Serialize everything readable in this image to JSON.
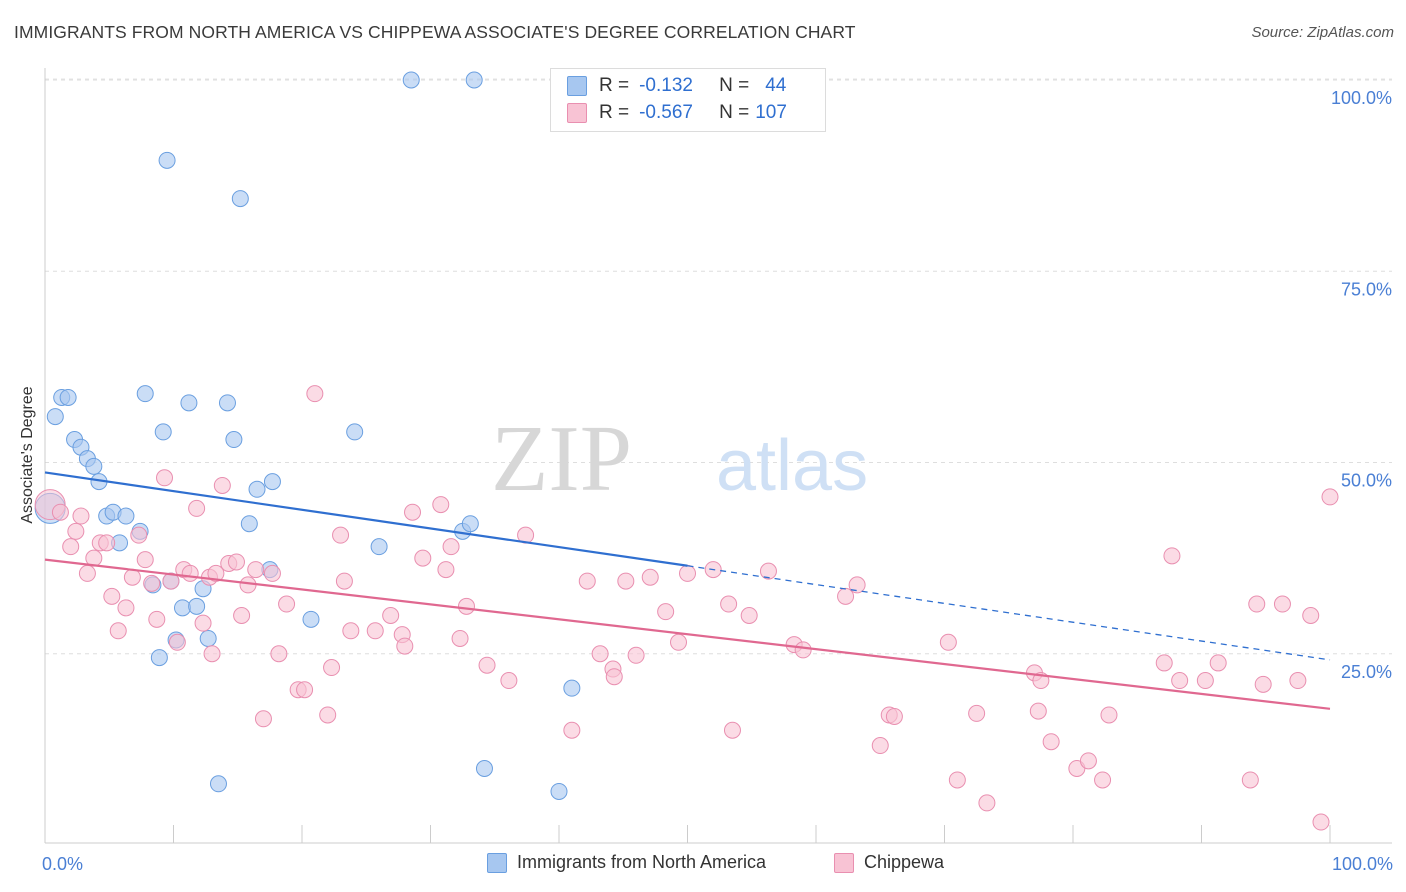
{
  "title": "IMMIGRANTS FROM NORTH AMERICA VS CHIPPEWA ASSOCIATE'S DEGREE CORRELATION CHART",
  "source": "Source: ZipAtlas.com",
  "watermark": {
    "zip": "ZIP",
    "atlas": "atlas"
  },
  "stats": [
    {
      "r_label": "R =",
      "r_value": "-0.132",
      "n_label": "N =",
      "n_value": "44",
      "color": "#a7c7f0",
      "border": "#6a9fe0"
    },
    {
      "r_label": "R =",
      "r_value": "-0.567",
      "n_label": "N =",
      "n_value": "107",
      "color": "#f8c3d4",
      "border": "#e98fb0"
    }
  ],
  "legend": [
    {
      "label": "Immigrants from North America",
      "color": "#a7c7f0",
      "border": "#6a9fe0"
    },
    {
      "label": "Chippewa",
      "color": "#f8c3d4",
      "border": "#e98fb0"
    }
  ],
  "chart_data": {
    "type": "scatter",
    "xlabel": "",
    "ylabel": "Associate's Degree",
    "xlim": [
      0,
      100
    ],
    "ylim": [
      0,
      100
    ],
    "x_tick_labels": [
      {
        "value": 0,
        "label": "0.0%"
      },
      {
        "value": 100,
        "label": "100.0%"
      }
    ],
    "y_tick_labels": [
      {
        "value": 25,
        "label": "25.0%"
      },
      {
        "value": 50,
        "label": "50.0%"
      },
      {
        "value": 75,
        "label": "75.0%"
      },
      {
        "value": 100,
        "label": "100.0%"
      }
    ],
    "grid": true,
    "series": [
      {
        "name": "Immigrants from North America",
        "color": "#a7c7f0",
        "stroke": "#6a9fe0",
        "line_color": "#2f6fd0",
        "trend": {
          "x0": 0,
          "y0": 48.7,
          "x1": 50,
          "y1": 36.5,
          "dash_to_x": 100,
          "dash_to_y": 24.2
        },
        "points": [
          [
            0.4,
            44.0
          ],
          [
            0.8,
            56.0
          ],
          [
            1.3,
            58.5
          ],
          [
            1.8,
            58.5
          ],
          [
            2.3,
            53.0
          ],
          [
            2.8,
            52.0
          ],
          [
            3.3,
            50.5
          ],
          [
            3.8,
            49.5
          ],
          [
            4.2,
            47.5
          ],
          [
            4.8,
            43.0
          ],
          [
            5.3,
            43.5
          ],
          [
            5.8,
            39.5
          ],
          [
            6.3,
            43.0
          ],
          [
            7.4,
            41.0
          ],
          [
            7.8,
            59.0
          ],
          [
            8.4,
            34.0
          ],
          [
            8.9,
            24.5
          ],
          [
            9.2,
            54.0
          ],
          [
            9.8,
            34.5
          ],
          [
            10.2,
            26.8
          ],
          [
            10.7,
            31.0
          ],
          [
            11.2,
            57.8
          ],
          [
            11.8,
            31.2
          ],
          [
            12.3,
            33.5
          ],
          [
            12.7,
            27.0
          ],
          [
            9.5,
            89.5
          ],
          [
            14.2,
            57.8
          ],
          [
            14.7,
            53.0
          ],
          [
            15.2,
            84.5
          ],
          [
            15.9,
            42.0
          ],
          [
            16.5,
            46.5
          ],
          [
            17.5,
            36.0
          ],
          [
            17.7,
            47.5
          ],
          [
            20.7,
            29.5
          ],
          [
            24.1,
            54.0
          ],
          [
            26.0,
            39.0
          ],
          [
            28.5,
            100.0
          ],
          [
            33.4,
            100.0
          ],
          [
            32.5,
            41.0
          ],
          [
            33.1,
            42.0
          ],
          [
            34.2,
            10.0
          ],
          [
            41.0,
            20.5
          ],
          [
            40.0,
            7.0
          ],
          [
            13.5,
            8.0
          ]
        ]
      },
      {
        "name": "Chippewa",
        "color": "#f8c3d4",
        "stroke": "#e98fb0",
        "line_color": "#e06890",
        "trend": {
          "x0": 0,
          "y0": 37.3,
          "x1": 100,
          "y1": 17.8
        },
        "points": [
          [
            0.4,
            44.5
          ],
          [
            1.2,
            43.5
          ],
          [
            2.0,
            39.0
          ],
          [
            2.4,
            41.0
          ],
          [
            2.8,
            43.0
          ],
          [
            3.3,
            35.5
          ],
          [
            3.8,
            37.5
          ],
          [
            4.3,
            39.5
          ],
          [
            4.8,
            39.5
          ],
          [
            5.2,
            32.5
          ],
          [
            5.7,
            28.0
          ],
          [
            6.3,
            31.0
          ],
          [
            6.8,
            35.0
          ],
          [
            7.3,
            40.5
          ],
          [
            7.8,
            37.3
          ],
          [
            8.3,
            34.2
          ],
          [
            8.7,
            29.5
          ],
          [
            9.3,
            48.0
          ],
          [
            9.8,
            34.5
          ],
          [
            10.3,
            26.5
          ],
          [
            10.8,
            36.0
          ],
          [
            11.3,
            35.5
          ],
          [
            11.8,
            44.0
          ],
          [
            12.3,
            29.0
          ],
          [
            12.8,
            35.0
          ],
          [
            13.0,
            25.0
          ],
          [
            13.3,
            35.5
          ],
          [
            13.8,
            47.0
          ],
          [
            14.3,
            36.8
          ],
          [
            14.9,
            37.0
          ],
          [
            15.3,
            30.0
          ],
          [
            15.8,
            34.0
          ],
          [
            16.4,
            36.0
          ],
          [
            17.0,
            16.5
          ],
          [
            17.7,
            35.5
          ],
          [
            18.2,
            25.0
          ],
          [
            18.8,
            31.5
          ],
          [
            19.7,
            20.3
          ],
          [
            20.2,
            20.3
          ],
          [
            21.0,
            59.0
          ],
          [
            22.0,
            17.0
          ],
          [
            22.3,
            23.2
          ],
          [
            23.0,
            40.5
          ],
          [
            23.3,
            34.5
          ],
          [
            23.8,
            28.0
          ],
          [
            25.7,
            28.0
          ],
          [
            26.9,
            30.0
          ],
          [
            27.8,
            27.5
          ],
          [
            28.0,
            26.0
          ],
          [
            28.6,
            43.5
          ],
          [
            29.4,
            37.5
          ],
          [
            30.8,
            44.5
          ],
          [
            31.2,
            36.0
          ],
          [
            31.6,
            39.0
          ],
          [
            32.3,
            27.0
          ],
          [
            32.8,
            31.2
          ],
          [
            34.4,
            23.5
          ],
          [
            36.1,
            21.5
          ],
          [
            37.4,
            40.5
          ],
          [
            41.0,
            15.0
          ],
          [
            42.2,
            34.5
          ],
          [
            43.2,
            25.0
          ],
          [
            44.2,
            23.0
          ],
          [
            44.3,
            22.0
          ],
          [
            45.2,
            34.5
          ],
          [
            46.0,
            24.8
          ],
          [
            47.1,
            35.0
          ],
          [
            48.3,
            30.5
          ],
          [
            49.3,
            26.5
          ],
          [
            50.0,
            35.5
          ],
          [
            52.0,
            36.0
          ],
          [
            53.2,
            31.5
          ],
          [
            53.5,
            15.0
          ],
          [
            54.8,
            30.0
          ],
          [
            56.3,
            35.8
          ],
          [
            58.3,
            26.2
          ],
          [
            59.0,
            25.5
          ],
          [
            62.3,
            32.5
          ],
          [
            63.2,
            34.0
          ],
          [
            65.0,
            13.0
          ],
          [
            65.7,
            17.0
          ],
          [
            66.1,
            16.8
          ],
          [
            70.3,
            26.5
          ],
          [
            71.0,
            8.5
          ],
          [
            72.5,
            17.2
          ],
          [
            73.3,
            5.5
          ],
          [
            77.0,
            22.5
          ],
          [
            77.3,
            17.5
          ],
          [
            78.3,
            13.5
          ],
          [
            80.3,
            10.0
          ],
          [
            81.2,
            11.0
          ],
          [
            82.3,
            8.5
          ],
          [
            82.8,
            17.0
          ],
          [
            87.1,
            23.8
          ],
          [
            87.7,
            37.8
          ],
          [
            88.3,
            21.5
          ],
          [
            90.3,
            21.5
          ],
          [
            91.3,
            23.8
          ],
          [
            93.8,
            8.5
          ],
          [
            94.3,
            31.5
          ],
          [
            94.8,
            21.0
          ],
          [
            96.3,
            31.5
          ],
          [
            97.5,
            21.5
          ],
          [
            98.5,
            30.0
          ],
          [
            99.3,
            3.0
          ],
          [
            100.0,
            45.5
          ],
          [
            77.5,
            21.5
          ]
        ]
      }
    ]
  }
}
